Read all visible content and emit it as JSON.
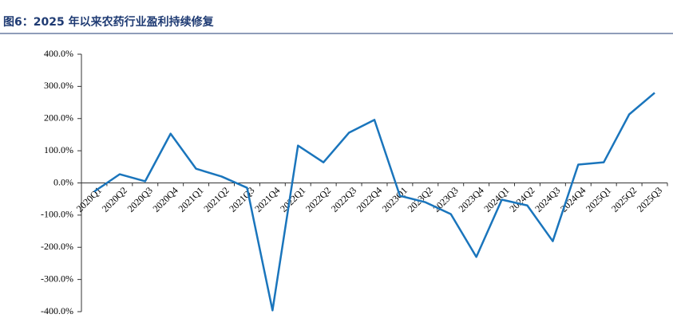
{
  "chart_data": {
    "type": "line",
    "title": "图6：2025 年以来农药行业盈利持续修复",
    "categories": [
      "2020Q1",
      "2020Q2",
      "2020Q3",
      "2020Q4",
      "2021Q1",
      "2021Q2",
      "2021Q3",
      "2021Q4",
      "2022Q1",
      "2022Q2",
      "2022Q3",
      "2022Q4",
      "2023Q1",
      "2023Q2",
      "2023Q3",
      "2023Q4",
      "2024Q1",
      "2024Q2",
      "2024Q3",
      "2024Q4",
      "2025Q1",
      "2025Q2",
      "2025Q3"
    ],
    "values": [
      -27,
      27,
      5,
      153,
      44,
      20,
      -15,
      -396,
      116,
      64,
      156,
      196,
      -40,
      -60,
      -97,
      -230,
      -52,
      -70,
      -181,
      57,
      64,
      213,
      280
    ],
    "color": "#1a75bc",
    "ylim": [
      -400,
      400
    ],
    "yticks": [
      {
        "value": -400,
        "label": "-400.0%"
      },
      {
        "value": -300,
        "label": "-300.0%"
      },
      {
        "value": -200,
        "label": "-200.0%"
      },
      {
        "value": -100,
        "label": "-100.0%"
      },
      {
        "value": 0,
        "label": "0.0%"
      },
      {
        "value": 100,
        "label": "100.0%"
      },
      {
        "value": 200,
        "label": "200.0%"
      },
      {
        "value": 300,
        "label": "300.0%"
      },
      {
        "value": 400,
        "label": "400.0%"
      }
    ],
    "grid": false
  }
}
